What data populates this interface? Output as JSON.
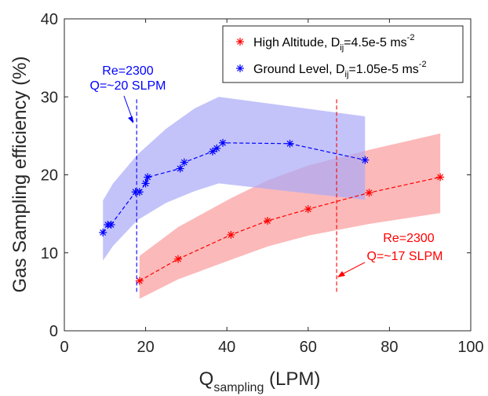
{
  "chart_data": {
    "type": "line",
    "xlabel": {
      "main": "Q",
      "sub": "sampling",
      "unit": " (LPM)"
    },
    "ylabel": "Gas Sampling efficiency (%)",
    "xlim": [
      0,
      100
    ],
    "ylim": [
      0,
      40
    ],
    "xticks": [
      "0",
      "20",
      "40",
      "60",
      "80",
      "100"
    ],
    "yticks": [
      "0",
      "10",
      "20",
      "30",
      "40"
    ],
    "grid": false,
    "legend_position": "top-right",
    "series": [
      {
        "name": "High Altitude",
        "legend": {
          "prefix": "High Altitude, D",
          "sub": "ij",
          "mid": "=4.5e-5 ms",
          "sup": "-2"
        },
        "color": "#ff0000",
        "band_color": "#fb9b9b",
        "marker": "asterisk",
        "x": [
          18.5,
          28,
          41,
          50,
          60,
          75,
          92.5
        ],
        "y": [
          6.4,
          9.2,
          12.3,
          14.1,
          15.6,
          17.7,
          19.7
        ],
        "band_x": [
          18.5,
          28,
          41,
          50,
          60,
          75,
          92.5
        ],
        "band_upper": [
          9.6,
          13.3,
          17.0,
          19.3,
          21.2,
          23.2,
          25.3
        ],
        "band_lower": [
          4.1,
          6.6,
          9.1,
          10.8,
          12.2,
          13.7,
          15.1
        ]
      },
      {
        "name": "Ground Level",
        "legend": {
          "prefix": "Ground Level, D",
          "sub": "ij",
          "mid": "=1.05e-5 ms",
          "sup": "-2"
        },
        "color": "#0000ff",
        "band_color": "#aaaaf8",
        "marker": "asterisk",
        "x": [
          9.5,
          10.7,
          11.5,
          17.5,
          18.5,
          20,
          20.5,
          28.5,
          29.5,
          36.5,
          37.5,
          39,
          55.5,
          74
        ],
        "y": [
          12.6,
          13.6,
          13.6,
          17.8,
          17.8,
          18.9,
          19.7,
          20.8,
          21.6,
          23.0,
          23.4,
          24.1,
          24.0,
          21.9
        ],
        "band_x": [
          9.5,
          12,
          18,
          25,
          32,
          38,
          74
        ],
        "band_upper": [
          16.7,
          18.9,
          22.6,
          25.9,
          28.5,
          30.0,
          27.5
        ],
        "band_lower": [
          9.0,
          10.9,
          14.2,
          16.4,
          17.9,
          18.9,
          16.8
        ]
      }
    ],
    "reference_lines": [
      {
        "x": 17.8,
        "color": "#0000ff",
        "y_from": 5,
        "y_to": 29.8
      },
      {
        "x": 67,
        "color": "#ff0000",
        "y_from": 5,
        "y_to": 29.8
      }
    ],
    "annotations": [
      {
        "lines": [
          "Re=2300",
          "Q=~20 SLPM"
        ],
        "color": "#0000ff",
        "arrow_x": 17.8,
        "arrow_y": 26.5
      },
      {
        "lines": [
          "Re=2300",
          "Q=~17 SLPM"
        ],
        "color": "#ff0000",
        "arrow_x": 67,
        "arrow_y": 7
      }
    ]
  }
}
